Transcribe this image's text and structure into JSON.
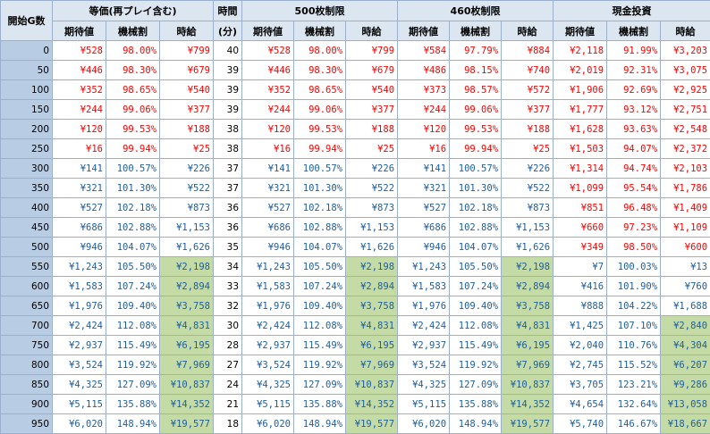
{
  "header": {
    "start_g": "開始G数",
    "group1": "等価(再プレイ含む)",
    "jikan": "時間",
    "group2": "500枚制限",
    "group3": "460枚制限",
    "group4": "現金投資",
    "expected": "期待値",
    "payout": "機械割",
    "hourly": "時給",
    "minutes": "(分)"
  },
  "colors": {
    "negative": "#ff0000",
    "positive": "#1f5fa0",
    "highlight": "#c4dba5",
    "header": "#dce6f1",
    "gcol": "#b8cce4"
  },
  "rows": [
    {
      "g": "0",
      "time": "40",
      "c": [
        [
          "¥528",
          "98.00%",
          "¥799"
        ],
        [
          "¥528",
          "98.00%",
          "¥799"
        ],
        [
          "¥584",
          "97.79%",
          "¥884"
        ],
        [
          "¥2,118",
          "91.99%",
          "¥3,203"
        ]
      ],
      "neg": [
        1,
        1,
        1,
        1
      ],
      "hl": [
        0,
        0,
        0,
        0
      ]
    },
    {
      "g": "50",
      "time": "39",
      "c": [
        [
          "¥446",
          "98.30%",
          "¥679"
        ],
        [
          "¥446",
          "98.30%",
          "¥679"
        ],
        [
          "¥486",
          "98.15%",
          "¥740"
        ],
        [
          "¥2,019",
          "92.31%",
          "¥3,075"
        ]
      ],
      "neg": [
        1,
        1,
        1,
        1
      ],
      "hl": [
        0,
        0,
        0,
        0
      ]
    },
    {
      "g": "100",
      "time": "39",
      "c": [
        [
          "¥352",
          "98.65%",
          "¥540"
        ],
        [
          "¥352",
          "98.65%",
          "¥540"
        ],
        [
          "¥373",
          "98.57%",
          "¥572"
        ],
        [
          "¥1,906",
          "92.69%",
          "¥2,925"
        ]
      ],
      "neg": [
        1,
        1,
        1,
        1
      ],
      "hl": [
        0,
        0,
        0,
        0
      ]
    },
    {
      "g": "150",
      "time": "39",
      "c": [
        [
          "¥244",
          "99.06%",
          "¥377"
        ],
        [
          "¥244",
          "99.06%",
          "¥377"
        ],
        [
          "¥244",
          "99.06%",
          "¥377"
        ],
        [
          "¥1,777",
          "93.12%",
          "¥2,751"
        ]
      ],
      "neg": [
        1,
        1,
        1,
        1
      ],
      "hl": [
        0,
        0,
        0,
        0
      ]
    },
    {
      "g": "200",
      "time": "38",
      "c": [
        [
          "¥120",
          "99.53%",
          "¥188"
        ],
        [
          "¥120",
          "99.53%",
          "¥188"
        ],
        [
          "¥120",
          "99.53%",
          "¥188"
        ],
        [
          "¥1,628",
          "93.63%",
          "¥2,548"
        ]
      ],
      "neg": [
        1,
        1,
        1,
        1
      ],
      "hl": [
        0,
        0,
        0,
        0
      ]
    },
    {
      "g": "250",
      "time": "38",
      "c": [
        [
          "¥16",
          "99.94%",
          "¥25"
        ],
        [
          "¥16",
          "99.94%",
          "¥25"
        ],
        [
          "¥16",
          "99.94%",
          "¥25"
        ],
        [
          "¥1,503",
          "94.07%",
          "¥2,372"
        ]
      ],
      "neg": [
        1,
        1,
        1,
        1
      ],
      "hl": [
        0,
        0,
        0,
        0
      ]
    },
    {
      "g": "300",
      "time": "37",
      "c": [
        [
          "¥141",
          "100.57%",
          "¥226"
        ],
        [
          "¥141",
          "100.57%",
          "¥226"
        ],
        [
          "¥141",
          "100.57%",
          "¥226"
        ],
        [
          "¥1,314",
          "94.74%",
          "¥2,103"
        ]
      ],
      "neg": [
        0,
        0,
        0,
        1
      ],
      "hl": [
        0,
        0,
        0,
        0
      ]
    },
    {
      "g": "350",
      "time": "37",
      "c": [
        [
          "¥321",
          "101.30%",
          "¥522"
        ],
        [
          "¥321",
          "101.30%",
          "¥522"
        ],
        [
          "¥321",
          "101.30%",
          "¥522"
        ],
        [
          "¥1,099",
          "95.54%",
          "¥1,786"
        ]
      ],
      "neg": [
        0,
        0,
        0,
        1
      ],
      "hl": [
        0,
        0,
        0,
        0
      ]
    },
    {
      "g": "400",
      "time": "36",
      "c": [
        [
          "¥527",
          "102.18%",
          "¥873"
        ],
        [
          "¥527",
          "102.18%",
          "¥873"
        ],
        [
          "¥527",
          "102.18%",
          "¥873"
        ],
        [
          "¥851",
          "96.48%",
          "¥1,409"
        ]
      ],
      "neg": [
        0,
        0,
        0,
        1
      ],
      "hl": [
        0,
        0,
        0,
        0
      ]
    },
    {
      "g": "450",
      "time": "36",
      "c": [
        [
          "¥686",
          "102.88%",
          "¥1,153"
        ],
        [
          "¥686",
          "102.88%",
          "¥1,153"
        ],
        [
          "¥686",
          "102.88%",
          "¥1,153"
        ],
        [
          "¥660",
          "97.23%",
          "¥1,109"
        ]
      ],
      "neg": [
        0,
        0,
        0,
        1
      ],
      "hl": [
        0,
        0,
        0,
        0
      ]
    },
    {
      "g": "500",
      "time": "35",
      "c": [
        [
          "¥946",
          "104.07%",
          "¥1,626"
        ],
        [
          "¥946",
          "104.07%",
          "¥1,626"
        ],
        [
          "¥946",
          "104.07%",
          "¥1,626"
        ],
        [
          "¥349",
          "98.50%",
          "¥600"
        ]
      ],
      "neg": [
        0,
        0,
        0,
        1
      ],
      "hl": [
        0,
        0,
        0,
        0
      ]
    },
    {
      "g": "550",
      "time": "34",
      "c": [
        [
          "¥1,243",
          "105.50%",
          "¥2,198"
        ],
        [
          "¥1,243",
          "105.50%",
          "¥2,198"
        ],
        [
          "¥1,243",
          "105.50%",
          "¥2,198"
        ],
        [
          "¥7",
          "100.03%",
          "¥13"
        ]
      ],
      "neg": [
        0,
        0,
        0,
        0
      ],
      "hl": [
        1,
        1,
        1,
        0
      ]
    },
    {
      "g": "600",
      "time": "33",
      "c": [
        [
          "¥1,583",
          "107.24%",
          "¥2,894"
        ],
        [
          "¥1,583",
          "107.24%",
          "¥2,894"
        ],
        [
          "¥1,583",
          "107.24%",
          "¥2,894"
        ],
        [
          "¥416",
          "101.90%",
          "¥760"
        ]
      ],
      "neg": [
        0,
        0,
        0,
        0
      ],
      "hl": [
        1,
        1,
        1,
        0
      ]
    },
    {
      "g": "650",
      "time": "32",
      "c": [
        [
          "¥1,976",
          "109.40%",
          "¥3,758"
        ],
        [
          "¥1,976",
          "109.40%",
          "¥3,758"
        ],
        [
          "¥1,976",
          "109.40%",
          "¥3,758"
        ],
        [
          "¥888",
          "104.22%",
          "¥1,688"
        ]
      ],
      "neg": [
        0,
        0,
        0,
        0
      ],
      "hl": [
        1,
        1,
        1,
        0
      ]
    },
    {
      "g": "700",
      "time": "30",
      "c": [
        [
          "¥2,424",
          "112.08%",
          "¥4,831"
        ],
        [
          "¥2,424",
          "112.08%",
          "¥4,831"
        ],
        [
          "¥2,424",
          "112.08%",
          "¥4,831"
        ],
        [
          "¥1,425",
          "107.10%",
          "¥2,840"
        ]
      ],
      "neg": [
        0,
        0,
        0,
        0
      ],
      "hl": [
        1,
        1,
        1,
        1
      ]
    },
    {
      "g": "750",
      "time": "28",
      "c": [
        [
          "¥2,937",
          "115.49%",
          "¥6,195"
        ],
        [
          "¥2,937",
          "115.49%",
          "¥6,195"
        ],
        [
          "¥2,937",
          "115.49%",
          "¥6,195"
        ],
        [
          "¥2,040",
          "110.76%",
          "¥4,304"
        ]
      ],
      "neg": [
        0,
        0,
        0,
        0
      ],
      "hl": [
        1,
        1,
        1,
        1
      ]
    },
    {
      "g": "800",
      "time": "27",
      "c": [
        [
          "¥3,524",
          "119.92%",
          "¥7,969"
        ],
        [
          "¥3,524",
          "119.92%",
          "¥7,969"
        ],
        [
          "¥3,524",
          "119.92%",
          "¥7,969"
        ],
        [
          "¥2,745",
          "115.52%",
          "¥6,207"
        ]
      ],
      "neg": [
        0,
        0,
        0,
        0
      ],
      "hl": [
        1,
        1,
        1,
        1
      ]
    },
    {
      "g": "850",
      "time": "24",
      "c": [
        [
          "¥4,325",
          "127.09%",
          "¥10,837"
        ],
        [
          "¥4,325",
          "127.09%",
          "¥10,837"
        ],
        [
          "¥4,325",
          "127.09%",
          "¥10,837"
        ],
        [
          "¥3,705",
          "123.21%",
          "¥9,286"
        ]
      ],
      "neg": [
        0,
        0,
        0,
        0
      ],
      "hl": [
        1,
        1,
        1,
        1
      ]
    },
    {
      "g": "900",
      "time": "21",
      "c": [
        [
          "¥5,115",
          "135.88%",
          "¥14,352"
        ],
        [
          "¥5,115",
          "135.88%",
          "¥14,352"
        ],
        [
          "¥5,115",
          "135.88%",
          "¥14,352"
        ],
        [
          "¥4,654",
          "132.64%",
          "¥13,058"
        ]
      ],
      "neg": [
        0,
        0,
        0,
        0
      ],
      "hl": [
        1,
        1,
        1,
        1
      ]
    },
    {
      "g": "950",
      "time": "18",
      "c": [
        [
          "¥6,020",
          "148.94%",
          "¥19,577"
        ],
        [
          "¥6,020",
          "148.94%",
          "¥19,577"
        ],
        [
          "¥6,020",
          "148.94%",
          "¥19,577"
        ],
        [
          "¥5,740",
          "146.67%",
          "¥18,667"
        ]
      ],
      "neg": [
        0,
        0,
        0,
        0
      ],
      "hl": [
        1,
        1,
        1,
        1
      ]
    }
  ]
}
